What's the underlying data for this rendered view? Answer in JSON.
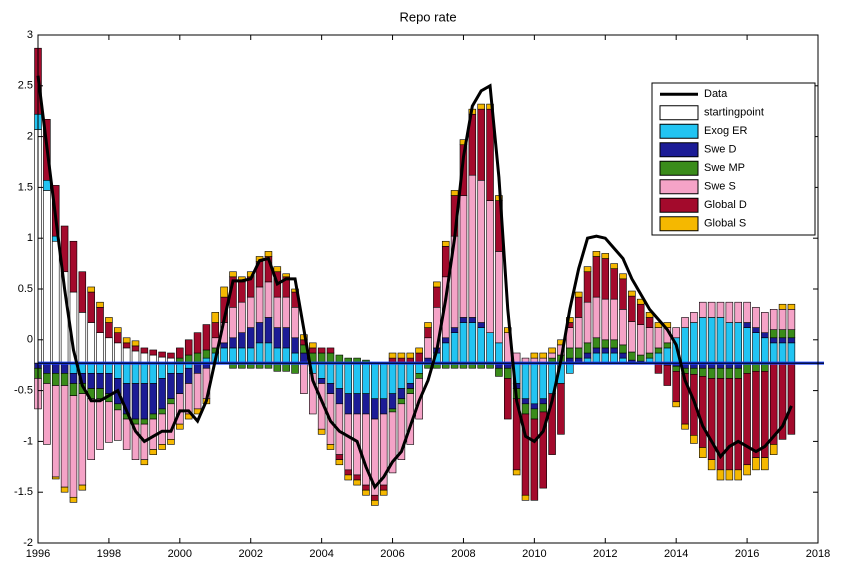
{
  "chart_data": {
    "type": "bar",
    "title": "Repo rate",
    "x": [
      1996,
      1996.25,
      1996.5,
      1996.75,
      1997,
      1997.25,
      1997.5,
      1997.75,
      1998,
      1998.25,
      1998.5,
      1998.75,
      1999,
      1999.25,
      1999.5,
      1999.75,
      2000,
      2000.25,
      2000.5,
      2000.75,
      2001,
      2001.25,
      2001.5,
      2001.75,
      2002,
      2002.25,
      2002.5,
      2002.75,
      2003,
      2003.25,
      2003.5,
      2003.75,
      2004,
      2004.25,
      2004.5,
      2004.75,
      2005,
      2005.25,
      2005.5,
      2005.75,
      2006,
      2006.25,
      2006.5,
      2006.75,
      2007,
      2007.25,
      2007.5,
      2007.75,
      2008,
      2008.25,
      2008.5,
      2008.75,
      2009,
      2009.25,
      2009.5,
      2009.75,
      2010,
      2010.25,
      2010.5,
      2010.75,
      2011,
      2011.25,
      2011.5,
      2011.75,
      2012,
      2012.25,
      2012.5,
      2012.75,
      2013,
      2013.25,
      2013.5,
      2013.75,
      2014,
      2014.25,
      2014.5,
      2014.75,
      2015,
      2015.25,
      2015.5,
      2015.75,
      2016,
      2016.25,
      2016.5,
      2016.75,
      2017,
      2017.25
    ],
    "xlim": [
      1996,
      2018
    ],
    "xticks": [
      1996,
      1998,
      2000,
      2002,
      2004,
      2006,
      2008,
      2010,
      2012,
      2014,
      2016,
      2018
    ],
    "ylim": [
      -2,
      3
    ],
    "yticks": [
      -2,
      -1.5,
      -1,
      -0.5,
      0,
      0.5,
      1,
      1.5,
      2,
      2.5,
      3
    ],
    "baseline": -0.23,
    "series": [
      {
        "name": "Data",
        "type": "line",
        "color": "#000000",
        "values": [
          2.6,
          1.9,
          1.2,
          0.5,
          -0.1,
          -0.45,
          -0.6,
          -0.6,
          -0.55,
          -0.5,
          -0.7,
          -0.9,
          -1.0,
          -0.95,
          -0.9,
          -0.9,
          -0.7,
          -0.7,
          -0.8,
          -0.6,
          -0.2,
          0.2,
          0.58,
          0.58,
          0.6,
          0.78,
          0.8,
          0.55,
          0.6,
          0.6,
          0.1,
          -0.4,
          -0.6,
          -0.8,
          -0.9,
          -0.95,
          -1.0,
          -1.25,
          -1.45,
          -1.35,
          -1.2,
          -1.1,
          -0.85,
          -0.6,
          -0.4,
          -0.1,
          0.4,
          1.0,
          1.8,
          2.3,
          2.45,
          2.5,
          1.6,
          0.3,
          -0.6,
          -0.95,
          -1.0,
          -0.9,
          -0.6,
          -0.2,
          0.3,
          0.7,
          1.0,
          1.02,
          1.0,
          0.9,
          0.8,
          0.6,
          0.45,
          0.3,
          0.2,
          0.1,
          -0.05,
          -0.4,
          -0.6,
          -0.85,
          -1.0,
          -1.15,
          -1.05,
          -1.0,
          -1.05,
          -1.1,
          -1.05,
          -0.95,
          -0.85,
          -0.65
        ]
      },
      {
        "name": "startingpoint",
        "color": "#ffffff",
        "values": [
          2.3,
          1.7,
          1.2,
          0.9,
          0.7,
          0.5,
          0.4,
          0.3,
          0.25,
          0.2,
          0.15,
          0.12,
          0.1,
          0.08,
          0.06,
          0.05,
          0,
          0,
          0,
          0,
          0,
          0,
          0,
          0,
          0,
          0,
          0,
          0,
          0,
          0,
          0,
          0,
          0,
          0,
          0,
          0,
          0,
          0,
          0,
          0,
          0,
          0,
          0,
          0,
          0,
          0,
          0,
          0,
          0,
          0,
          0,
          0,
          0,
          0,
          0,
          0,
          0,
          0,
          0,
          0,
          0,
          0,
          0,
          0,
          0,
          0,
          0,
          0,
          0,
          0,
          0,
          0,
          0,
          0,
          0,
          0,
          0,
          0,
          0,
          0,
          0,
          0,
          0,
          0,
          0,
          0
        ]
      },
      {
        "name": "Exog ER",
        "color": "#22c4f2",
        "values": [
          0.15,
          0.1,
          0.05,
          0,
          -0.1,
          -0.1,
          -0.1,
          -0.1,
          -0.1,
          -0.15,
          -0.2,
          -0.2,
          -0.2,
          -0.2,
          -0.15,
          -0.1,
          -0.1,
          -0.05,
          0,
          0.05,
          0.1,
          0.15,
          0.15,
          0.15,
          0.15,
          0.2,
          0.2,
          0.15,
          0.15,
          0.1,
          0,
          -0.1,
          -0.15,
          -0.2,
          -0.25,
          -0.3,
          -0.3,
          -0.3,
          -0.35,
          -0.35,
          -0.3,
          -0.25,
          -0.2,
          -0.1,
          0,
          0.1,
          0.2,
          0.3,
          0.4,
          0.4,
          0.35,
          0.3,
          0.2,
          0,
          -0.2,
          -0.35,
          -0.4,
          -0.35,
          -0.3,
          -0.2,
          -0.1,
          0,
          0.05,
          0.1,
          0.1,
          0.1,
          0.05,
          0,
          0,
          0.05,
          0.1,
          0.15,
          0.25,
          0.35,
          0.4,
          0.45,
          0.45,
          0.45,
          0.4,
          0.4,
          0.35,
          0.3,
          0.25,
          0.2,
          0.2,
          0.2
        ]
      },
      {
        "name": "Swe D",
        "color": "#1c1c96",
        "values": [
          -0.05,
          -0.1,
          -0.1,
          -0.1,
          -0.1,
          -0.1,
          -0.15,
          -0.15,
          -0.2,
          -0.25,
          -0.3,
          -0.35,
          -0.35,
          -0.3,
          -0.3,
          -0.25,
          -0.2,
          -0.15,
          -0.1,
          -0.05,
          0,
          0.05,
          0.1,
          0.15,
          0.2,
          0.2,
          0.25,
          0.2,
          0.2,
          0.15,
          0.1,
          0,
          -0.05,
          -0.1,
          -0.15,
          -0.2,
          -0.2,
          -0.2,
          -0.2,
          -0.15,
          -0.15,
          -0.1,
          -0.05,
          0,
          0.05,
          0.05,
          0.05,
          0.05,
          0.05,
          0.05,
          0.05,
          0,
          -0.05,
          -0.05,
          -0.05,
          -0.05,
          -0.05,
          -0.05,
          0,
          0,
          0.05,
          0.05,
          0.05,
          0.05,
          0.05,
          0.05,
          0.05,
          0.03,
          0.02,
          0,
          0,
          -0.02,
          -0.03,
          -0.05,
          -0.05,
          -0.05,
          -0.05,
          -0.05,
          -0.05,
          -0.05,
          0.05,
          0.05,
          0.05,
          0.05,
          0.05,
          0.05
        ]
      },
      {
        "name": "Swe MP",
        "color": "#3a8c1a",
        "values": [
          -0.1,
          -0.1,
          -0.12,
          -0.12,
          -0.12,
          -0.1,
          -0.1,
          -0.1,
          -0.08,
          -0.06,
          -0.05,
          -0.05,
          -0.05,
          -0.05,
          -0.05,
          -0.05,
          0.05,
          0.08,
          0.1,
          0.08,
          0.05,
          0,
          -0.05,
          -0.05,
          -0.05,
          -0.05,
          -0.05,
          -0.08,
          -0.08,
          -0.1,
          0.08,
          0.1,
          0.1,
          0.1,
          0.08,
          0.05,
          0.05,
          0.03,
          0,
          0,
          -0.03,
          -0.05,
          -0.05,
          -0.05,
          -0.05,
          -0.05,
          -0.05,
          -0.05,
          -0.05,
          -0.05,
          -0.05,
          -0.05,
          -0.08,
          -0.1,
          -0.1,
          -0.1,
          -0.1,
          -0.08,
          0.05,
          0.08,
          0.1,
          0.1,
          0.1,
          0.1,
          0.08,
          0.08,
          0.08,
          0.08,
          0.06,
          0.05,
          0.05,
          0.05,
          -0.05,
          -0.05,
          -0.06,
          -0.08,
          -0.1,
          -0.1,
          -0.1,
          -0.1,
          -0.1,
          -0.08,
          -0.08,
          0.08,
          0.08,
          0.08
        ]
      },
      {
        "name": "Swe S",
        "color": "#f5a3c7",
        "values": [
          -0.3,
          -0.6,
          -0.9,
          -1.0,
          -1.0,
          -0.9,
          -0.6,
          -0.5,
          -0.4,
          -0.3,
          -0.3,
          -0.35,
          -0.35,
          -0.3,
          -0.3,
          -0.35,
          -0.3,
          -0.3,
          -0.35,
          -0.3,
          0.1,
          0.2,
          0.3,
          0.3,
          0.3,
          0.35,
          0.35,
          0.3,
          0.3,
          0.3,
          -0.3,
          -0.4,
          -0.45,
          -0.5,
          -0.5,
          -0.55,
          -0.6,
          -0.7,
          -0.75,
          -0.7,
          -0.6,
          -0.55,
          -0.5,
          -0.4,
          0.2,
          0.4,
          0.6,
          0.9,
          1.2,
          1.4,
          1.4,
          1.3,
          0.9,
          0.3,
          0.1,
          0.05,
          0.05,
          0.05,
          0.05,
          0.1,
          0.2,
          0.3,
          0.4,
          0.4,
          0.4,
          0.4,
          0.35,
          0.3,
          0.3,
          0.25,
          0.2,
          0.15,
          0.1,
          0.1,
          0.1,
          0.15,
          0.15,
          0.15,
          0.2,
          0.2,
          0.2,
          0.2,
          0.2,
          0.2,
          0.2,
          0.2
        ]
      },
      {
        "name": "Global D",
        "color": "#a30a2c",
        "values": [
          0.65,
          0.6,
          0.5,
          0.45,
          0.5,
          0.4,
          0.3,
          0.25,
          0.15,
          0.1,
          0.05,
          0.05,
          0.05,
          0.05,
          0.05,
          0.05,
          0.1,
          0.15,
          0.2,
          0.25,
          0.15,
          0.25,
          0.3,
          0.2,
          0.2,
          0.25,
          0.25,
          0.25,
          0.2,
          0.15,
          0.05,
          0.05,
          0.05,
          0.05,
          -0.05,
          -0.05,
          -0.05,
          -0.05,
          -0.05,
          -0.05,
          0.05,
          0.05,
          0.05,
          0.1,
          0.1,
          0.2,
          0.3,
          0.4,
          0.5,
          0.6,
          0.7,
          0.9,
          0.5,
          -0.4,
          -0.7,
          -0.8,
          -0.8,
          -0.75,
          -0.6,
          -0.5,
          0.05,
          0.2,
          0.3,
          0.4,
          0.4,
          0.3,
          0.3,
          0.25,
          0.2,
          0.1,
          -0.1,
          -0.2,
          -0.3,
          -0.5,
          -0.6,
          -0.7,
          -0.8,
          -0.9,
          -0.9,
          -0.9,
          -0.9,
          -0.85,
          -0.85,
          -0.8,
          -0.75,
          -0.7
        ]
      },
      {
        "name": "Global S",
        "color": "#f5b800",
        "values": [
          0,
          0,
          -0.02,
          -0.05,
          -0.05,
          -0.05,
          0.05,
          0.05,
          0.05,
          0.05,
          0.05,
          0.05,
          -0.05,
          -0.05,
          -0.05,
          -0.05,
          -0.05,
          -0.05,
          -0.05,
          -0.05,
          0.1,
          0.1,
          0.05,
          0.05,
          0.05,
          0.05,
          0.05,
          0.05,
          0.03,
          0.03,
          0.05,
          0.05,
          -0.05,
          -0.05,
          -0.05,
          -0.05,
          -0.05,
          -0.05,
          -0.05,
          -0.05,
          0.05,
          0.05,
          0.05,
          0.05,
          0.05,
          0.05,
          0.05,
          0.05,
          0.05,
          0.05,
          0.05,
          0.05,
          0.05,
          0.05,
          -0.05,
          -0.05,
          0.05,
          0.05,
          0.05,
          0.05,
          0.05,
          0.05,
          0.05,
          0.05,
          0.05,
          0.05,
          0.05,
          0.05,
          0.05,
          0.05,
          0.05,
          0.05,
          -0.05,
          -0.05,
          -0.08,
          -0.1,
          -0.1,
          -0.1,
          -0.1,
          -0.1,
          -0.1,
          -0.12,
          -0.12,
          -0.1,
          0.05,
          0.05
        ]
      }
    ]
  }
}
